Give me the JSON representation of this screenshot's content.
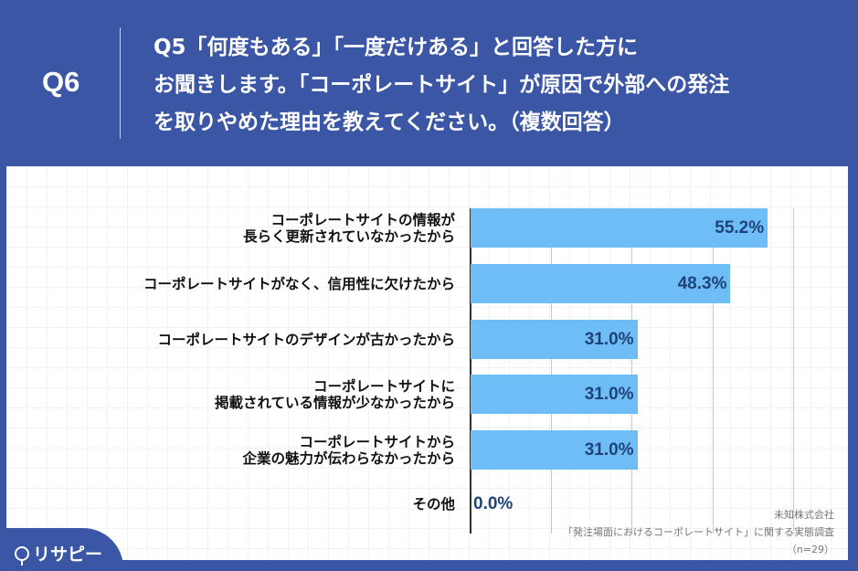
{
  "header": {
    "question_number": "Q6",
    "question_text": "Q5「何度もある」「一度だけある」と回答した方に\nお聞きします。「コーポレートサイト」が原因で外部への発注\nを取りやめた理由を教えてください。（複数回答）"
  },
  "chart_data": {
    "type": "bar",
    "orientation": "horizontal",
    "title": "Q5「何度もある」「一度だけある」と回答した方にお聞きします。「コーポレートサイト」が原因で外部への発注を取りやめた理由を教えてください。（複数回答）",
    "categories": [
      "コーポレートサイトの情報が\n長らく更新されていなかったから",
      "コーポレートサイトがなく、信用性に欠けたから",
      "コーポレートサイトのデザインが古かったから",
      "コーポレートサイトに\n掲載されている情報が少なかったから",
      "コーポレートサイトから\n企業の魅力が伝わらなかったから",
      "その他"
    ],
    "values": [
      55.2,
      48.3,
      31.0,
      31.0,
      31.0,
      0.0
    ],
    "value_labels": [
      "55.2%",
      "48.3%",
      "31.0%",
      "31.0%",
      "31.0%",
      "0.0%"
    ],
    "xlabel": "",
    "ylabel": "",
    "xlim": [
      0,
      60
    ],
    "gridlines": [
      0,
      15,
      30,
      45,
      60
    ],
    "grid": true,
    "bar_color": "#6fbdf7",
    "label_color": "#1d4378"
  },
  "rows": [
    {
      "label": "コーポレートサイトの情報が\n長らく更新されていなかったから",
      "value": 55.2,
      "value_label": "55.2%"
    },
    {
      "label": "コーポレートサイトがなく、信用性に欠けたから",
      "value": 48.3,
      "value_label": "48.3%"
    },
    {
      "label": "コーポレートサイトのデザインが古かったから",
      "value": 31.0,
      "value_label": "31.0%"
    },
    {
      "label": "コーポレートサイトに\n掲載されている情報が少なかったから",
      "value": 31.0,
      "value_label": "31.0%"
    },
    {
      "label": "コーポレートサイトから\n企業の魅力が伝わらなかったから",
      "value": 31.0,
      "value_label": "31.0%"
    },
    {
      "label": "その他",
      "value": 0.0,
      "value_label": "0.0%"
    }
  ],
  "source": {
    "company": "未知株式会社",
    "survey": "「発注場面におけるコーポレートサイト」に関する実態調査",
    "sample": "（n=29）"
  },
  "logo": {
    "text": "リサピー"
  },
  "colors": {
    "brand": "#3a56a5",
    "bar": "#6fbdf7",
    "value_text": "#1d4378"
  }
}
